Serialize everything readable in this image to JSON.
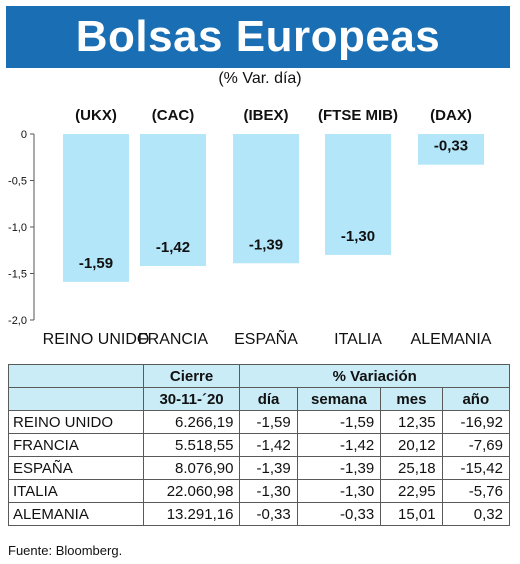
{
  "header": {
    "title": "Bolsas Europeas",
    "subtitle": "(% Var. día)"
  },
  "chart_data": {
    "type": "bar",
    "categories": [
      "REINO UNIDO",
      "FRANCIA",
      "ESPAÑA",
      "ITALIA",
      "ALEMANIA"
    ],
    "codes": [
      "(UKX)",
      "(CAC)",
      "(IBEX)",
      "(FTSE MIB)",
      "(DAX)"
    ],
    "values": [
      -1.59,
      -1.42,
      -1.39,
      -1.3,
      -0.33
    ],
    "value_labels": [
      "-1,59",
      "-1,42",
      "-1,39",
      "-1,30",
      "-0,33"
    ],
    "yticks": [
      0,
      -0.5,
      -1.0,
      -1.5,
      -2.0
    ],
    "ytick_labels": [
      "0",
      "-0,5",
      "-1,0",
      "-1,5",
      "-2,0"
    ],
    "ylim": [
      -2.0,
      0
    ],
    "bar_color": "#b3e6f9",
    "grid": false
  },
  "table": {
    "header_cierre": "Cierre",
    "header_variacion": "% Variación",
    "date": "30-11-´20",
    "columns": [
      "día",
      "semana",
      "mes",
      "año"
    ],
    "rows": [
      {
        "name": "REINO UNIDO",
        "cierre": "6.266,19",
        "dia": "-1,59",
        "semana": "-1,59",
        "mes": "12,35",
        "ano": "-16,92"
      },
      {
        "name": "FRANCIA",
        "cierre": "5.518,55",
        "dia": "-1,42",
        "semana": "-1,42",
        "mes": "20,12",
        "ano": "-7,69"
      },
      {
        "name": "ESPAÑA",
        "cierre": "8.076,90",
        "dia": "-1,39",
        "semana": "-1,39",
        "mes": "25,18",
        "ano": "-15,42"
      },
      {
        "name": "ITALIA",
        "cierre": "22.060,98",
        "dia": "-1,30",
        "semana": "-1,30",
        "mes": "22,95",
        "ano": "-5,76"
      },
      {
        "name": "ALEMANIA",
        "cierre": "13.291,16",
        "dia": "-0,33",
        "semana": "-0,33",
        "mes": "15,01",
        "ano": "0,32"
      }
    ],
    "header_color": "#c9ecf7"
  },
  "footer": {
    "source": "Fuente: Bloomberg."
  }
}
